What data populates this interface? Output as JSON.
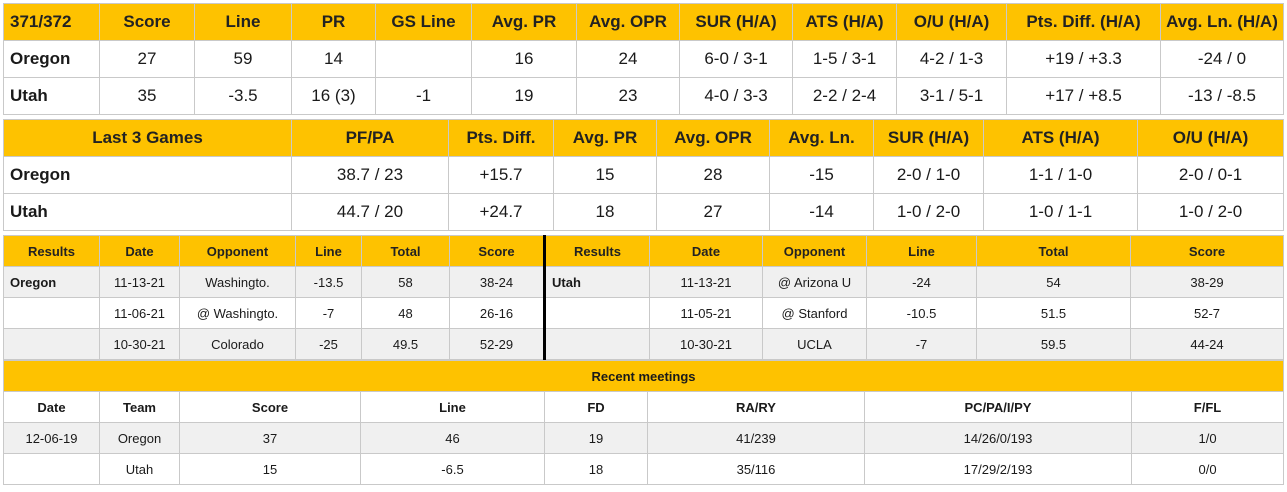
{
  "matchup": {
    "headers": [
      "371/372",
      "Score",
      "Line",
      "PR",
      "GS Line",
      "Avg. PR",
      "Avg. OPR",
      "SUR (H/A)",
      "ATS (H/A)",
      "O/U (H/A)",
      "Pts. Diff. (H/A)",
      "Avg. Ln. (H/A)"
    ],
    "rows": [
      {
        "team": "Oregon",
        "cells": [
          "27",
          "59",
          "14",
          "",
          "16",
          "24",
          "6-0 / 3-1",
          "1-5 / 3-1",
          "4-2 / 1-3",
          "+19 / +3.3",
          "-24 / 0"
        ]
      },
      {
        "team": "Utah",
        "cells": [
          "35",
          "-3.5",
          "16 (3)",
          "-1",
          "19",
          "23",
          "4-0 / 3-3",
          "2-2 / 2-4",
          "3-1 / 5-1",
          "+17 / +8.5",
          "-13 / -8.5"
        ]
      }
    ]
  },
  "last3": {
    "headers": [
      "Last 3 Games",
      "PF/PA",
      "Pts. Diff.",
      "Avg. PR",
      "Avg. OPR",
      "Avg. Ln.",
      "SUR (H/A)",
      "ATS (H/A)",
      "O/U (H/A)"
    ],
    "rows": [
      {
        "team": "Oregon",
        "cells": [
          "38.7 / 23",
          "+15.7",
          "15",
          "28",
          "-15",
          "2-0 / 1-0",
          "1-1 / 1-0",
          "2-0 / 0-1"
        ]
      },
      {
        "team": "Utah",
        "cells": [
          "44.7 / 20",
          "+24.7",
          "18",
          "27",
          "-14",
          "1-0 / 2-0",
          "1-0 / 1-1",
          "1-0 / 2-0"
        ]
      }
    ]
  },
  "results": {
    "headers": [
      "Results",
      "Date",
      "Opponent",
      "Line",
      "Total",
      "Score",
      "Results",
      "Date",
      "Opponent",
      "Line",
      "Total",
      "Score"
    ],
    "rows": [
      {
        "left": [
          "Oregon",
          "11-13-21",
          "Washingto.",
          "-13.5",
          "58",
          "38-24"
        ],
        "right": [
          "Utah",
          "11-13-21",
          "@ Arizona U",
          "-24",
          "54",
          "38-29"
        ]
      },
      {
        "left": [
          "",
          "11-06-21",
          "@ Washingto.",
          "-7",
          "48",
          "26-16"
        ],
        "right": [
          "",
          "11-05-21",
          "@ Stanford",
          "-10.5",
          "51.5",
          "52-7"
        ]
      },
      {
        "left": [
          "",
          "10-30-21",
          "Colorado",
          "-25",
          "49.5",
          "52-29"
        ],
        "right": [
          "",
          "10-30-21",
          "UCLA",
          "-7",
          "59.5",
          "44-24"
        ]
      }
    ]
  },
  "meetings": {
    "title": "Recent meetings",
    "headers": [
      "Date",
      "Team",
      "Score",
      "Line",
      "FD",
      "RA/RY",
      "PC/PA/I/PY",
      "F/FL"
    ],
    "rows": [
      [
        "12-06-19",
        "Oregon",
        "37",
        "46",
        "19",
        "41/239",
        "14/26/0/193",
        "1/0"
      ],
      [
        "",
        "Utah",
        "15",
        "-6.5",
        "18",
        "35/116",
        "17/29/2/193",
        "0/0"
      ]
    ]
  }
}
